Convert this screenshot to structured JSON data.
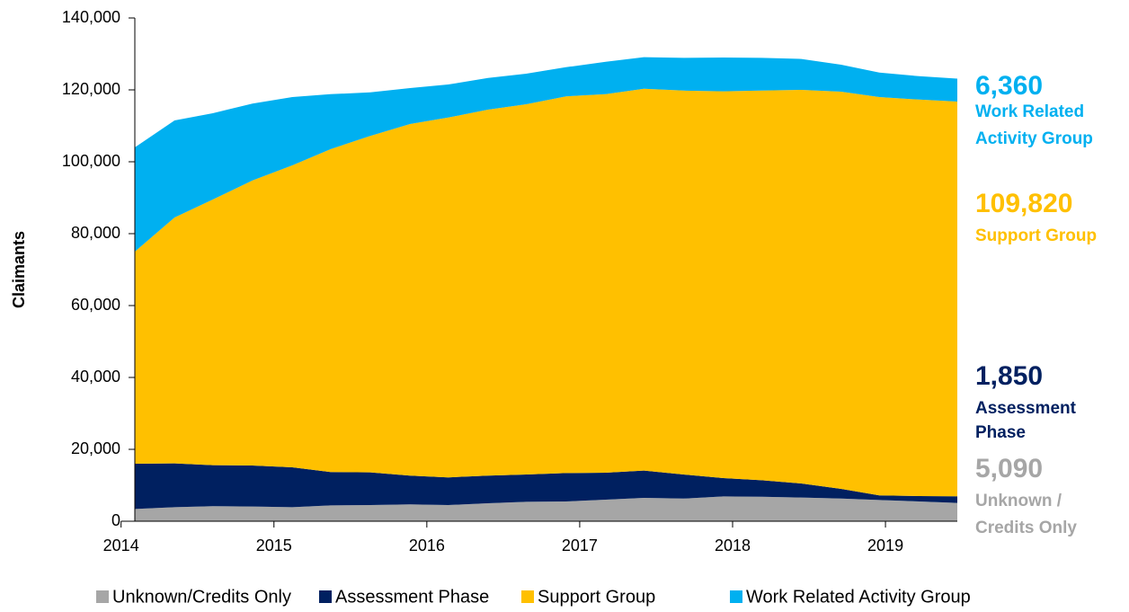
{
  "chart_data": {
    "type": "stacked_area",
    "y_label": "Claimants",
    "x": [
      2014.09,
      2014.35,
      2014.6,
      2014.86,
      2015.12,
      2015.37,
      2015.63,
      2015.89,
      2016.14,
      2016.4,
      2016.65,
      2016.91,
      2017.17,
      2017.42,
      2017.68,
      2017.94,
      2018.19,
      2018.45,
      2018.71,
      2018.96,
      2019.22,
      2019.47
    ],
    "xlim": [
      2014.09,
      2019.47
    ],
    "xticks": [
      2014,
      2015,
      2016,
      2017,
      2018,
      2019
    ],
    "ylim": [
      0,
      140000
    ],
    "yticks": [
      0,
      {
        "value": 20000,
        "label": "20,000"
      },
      {
        "value": 40000,
        "label": "40,000"
      },
      {
        "value": 60000,
        "label": "60,000"
      },
      {
        "value": 80000,
        "label": "80,000"
      },
      {
        "value": 100000,
        "label": "100,000"
      },
      {
        "value": 120000,
        "label": "120,000"
      },
      {
        "value": 140000,
        "label": "140,000"
      }
    ],
    "series": [
      {
        "name": "Unknown/Credits Only",
        "color": "#a6a6a6",
        "values": [
          3400,
          3900,
          4200,
          4100,
          3900,
          4400,
          4500,
          4700,
          4500,
          5000,
          5400,
          5500,
          6000,
          6500,
          6300,
          6900,
          6800,
          6600,
          6300,
          5900,
          5500,
          5090
        ],
        "value_labels": [
          null,
          null,
          null,
          null,
          null,
          null,
          null,
          null,
          null,
          null,
          null,
          null,
          null,
          null,
          null,
          null,
          null,
          null,
          null,
          null,
          null,
          "5,090"
        ],
        "label_lines": [
          "Unknown /",
          "Credits Only"
        ]
      },
      {
        "name": "Assessment Phase",
        "color": "#002060",
        "values": [
          12600,
          12200,
          11400,
          11400,
          11100,
          9300,
          9100,
          8000,
          7700,
          7700,
          7600,
          7900,
          7500,
          7600,
          6700,
          5100,
          4600,
          3900,
          2700,
          1300,
          1500,
          1850
        ],
        "value_labels": [
          null,
          null,
          null,
          null,
          null,
          null,
          null,
          null,
          null,
          null,
          null,
          null,
          null,
          null,
          null,
          null,
          null,
          null,
          null,
          null,
          null,
          "1,850"
        ],
        "label_lines": [
          "Assessment",
          "Phase"
        ]
      },
      {
        "name": "Support Group",
        "color": "#ffc000",
        "values": [
          59000,
          68400,
          73900,
          79300,
          84000,
          89800,
          93600,
          97800,
          100100,
          101800,
          103000,
          104800,
          105300,
          106200,
          106800,
          107600,
          108400,
          109500,
          110500,
          110800,
          110300,
          109820
        ],
        "value_labels": [
          null,
          null,
          null,
          null,
          null,
          null,
          null,
          null,
          null,
          null,
          null,
          null,
          null,
          null,
          null,
          null,
          null,
          null,
          null,
          null,
          null,
          "109,820"
        ],
        "label_lines": [
          "Support Group"
        ]
      },
      {
        "name": "Work Related Activity Group",
        "color": "#00b0f0",
        "values": [
          29000,
          27000,
          24000,
          21400,
          19000,
          15300,
          12100,
          10000,
          9200,
          8800,
          8500,
          8100,
          9000,
          8800,
          9100,
          9400,
          9100,
          8600,
          7500,
          6800,
          6500,
          6360
        ],
        "value_labels": [
          null,
          null,
          null,
          null,
          null,
          null,
          null,
          null,
          null,
          null,
          null,
          null,
          null,
          null,
          null,
          null,
          null,
          null,
          null,
          null,
          null,
          "6,360"
        ],
        "label_lines": [
          "Work Related",
          "Activity Group"
        ]
      }
    ]
  }
}
